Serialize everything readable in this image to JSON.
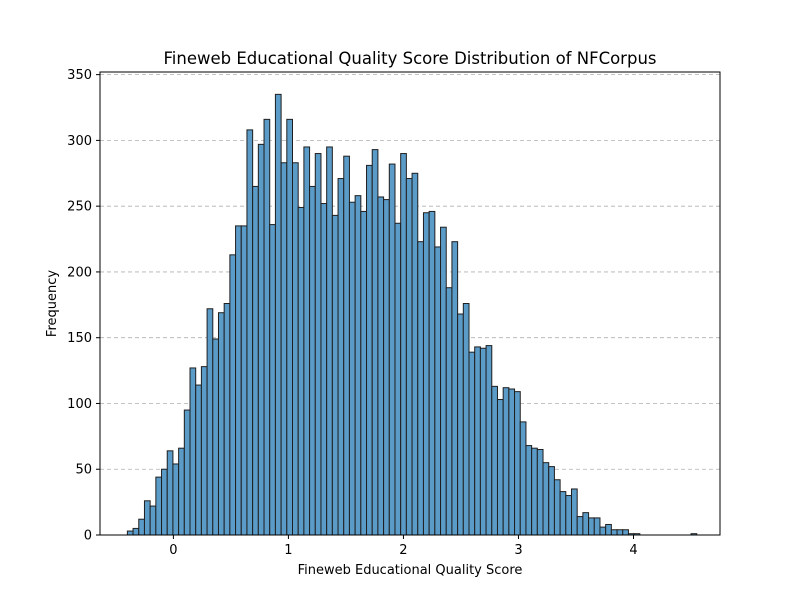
{
  "chart_data": {
    "type": "bar",
    "title": "Fineweb Educational Quality Score Distribution of NFCorpus",
    "xlabel": "Fineweb Educational Quality Score",
    "ylabel": "Frequency",
    "xlim": [
      -0.638,
      4.752
    ],
    "ylim": [
      0,
      352
    ],
    "grid": "horizontal-dashed",
    "bin_start": -0.4,
    "bin_width": 0.0495,
    "xticks": [
      "0",
      "1",
      "2",
      "3",
      "4"
    ],
    "yticks": [
      "0",
      "50",
      "100",
      "150",
      "200",
      "250",
      "300",
      "350"
    ],
    "values": [
      3,
      5,
      12,
      26,
      22,
      44,
      50,
      64,
      54,
      66,
      95,
      127,
      114,
      128,
      172,
      149,
      169,
      176,
      213,
      235,
      235,
      308,
      265,
      297,
      316,
      236,
      335,
      283,
      316,
      283,
      249,
      295,
      265,
      290,
      252,
      295,
      243,
      271,
      288,
      253,
      258,
      246,
      281,
      293,
      257,
      255,
      282,
      237,
      290,
      271,
      275,
      223,
      245,
      246,
      219,
      234,
      188,
      223,
      168,
      176,
      139,
      143,
      142,
      144,
      113,
      103,
      112,
      111,
      109,
      86,
      68,
      66,
      65,
      55,
      52,
      42,
      33,
      30,
      35,
      14,
      17,
      13,
      13,
      6,
      8,
      4,
      4,
      4,
      1,
      1,
      0,
      0,
      0,
      0,
      0,
      0,
      0,
      0,
      0,
      1
    ]
  }
}
